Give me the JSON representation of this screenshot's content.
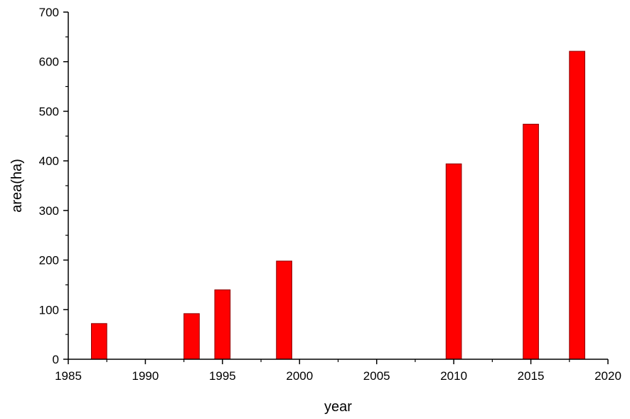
{
  "chart_data": {
    "type": "bar",
    "x": [
      1987,
      1993,
      1995,
      1999,
      2010,
      2015,
      2018
    ],
    "values": [
      72,
      92,
      140,
      198,
      394,
      474,
      621
    ],
    "xlabel": "year",
    "ylabel": "area(ha)",
    "xlim": [
      1985,
      2020
    ],
    "ylim": [
      0,
      700
    ],
    "xticks": [
      "1985",
      "1990",
      "1995",
      "2000",
      "2005",
      "2010",
      "2015",
      "2020"
    ],
    "yticks": [
      "0",
      "100",
      "200",
      "300",
      "400",
      "500",
      "600",
      "700"
    ],
    "bar_width_years": 1,
    "grid": false,
    "legend": "none",
    "bar_color": "#ff0000",
    "bar_edge_color": "#8b0000"
  }
}
